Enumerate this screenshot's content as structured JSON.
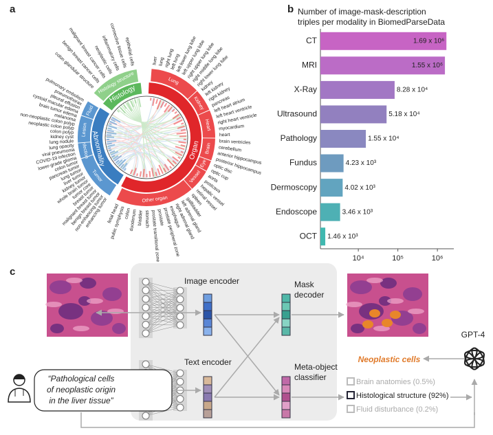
{
  "panel_labels": [
    "a",
    "b",
    "c"
  ],
  "panel_a": {
    "groups": [
      {
        "name": "Histology",
        "color": "#5cb85c",
        "band_color": "#8fd08a",
        "subgroups": [
          {
            "name": "Histology structure",
            "labels": [
              "colon glandular structure",
              "benign breast cancer cells",
              "malignant breast cancer cells",
              "neoplastic cells",
              "inflammatory cells",
              "connective tissue cells",
              "epithelial cells"
            ]
          }
        ]
      },
      {
        "name": "Organ",
        "color": "#e0262a",
        "band_color": "#ec4a4c",
        "subgroups": [
          {
            "name": "Lung",
            "labels": [
              "liver",
              "lung",
              "right lung",
              "left lung",
              "left lower lung lobe",
              "left upper lung lobe",
              "right upper lung lobe",
              "right middle lung lobe",
              "right lower lung lobe"
            ]
          },
          {
            "name": "Kidney",
            "labels": [
              "kidney",
              "left kidney",
              "right kidney",
              "pancreas"
            ]
          },
          {
            "name": "Heart",
            "labels": [
              "left heart atrium",
              "left heart ventricle",
              "right heart ventricle",
              "myocardium",
              "heart"
            ]
          },
          {
            "name": "Brain",
            "labels": [
              "brain ventricles",
              "cerebellum",
              "anterior hippocampus",
              "posterior hippocampus"
            ]
          },
          {
            "name": "Eye",
            "labels": [
              "optic disc",
              "optic cup"
            ]
          },
          {
            "name": "Vessel",
            "labels": [
              "aorta",
              "postcava",
              "hepatic vessel",
              "retinal vessel"
            ]
          },
          {
            "name": "Other organ",
            "labels": [
              "spleen",
              "gallbladder",
              "left adrenal gland",
              "right adrenal gland",
              "esophagus",
              "prostate peripheral zone",
              "prostate",
              "prostate transitional zone",
              "stomach",
              "bladder",
              "duodenum",
              "colon",
              "pubic symphysis",
              "fetal head"
            ]
          }
        ]
      },
      {
        "name": "Abnormality",
        "color": "#3a7dc0",
        "band_color": "#5b97d0",
        "subgroups": [
          {
            "name": "Tumor",
            "labels": [
              "enhancing tumor",
              "non-enhancing tumor",
              "benign breast tumor",
              "malignant breast tumor",
              "breast tumor",
              "tumor core",
              "whole brain tumor",
              "kidney tumor",
              "liver tumor",
              "lung tumor",
              "pancreas tumor",
              "colon tumor"
            ]
          },
          {
            "name": "Infection",
            "labels": [
              "lower-grade glioma",
              "COVID-19 infection",
              "viral pneumonia",
              "lung opacity"
            ]
          },
          {
            "name": "Lesion",
            "labels": [
              "lung nodule",
              "kidney cyst",
              "colon polyp",
              "neoplastic colon polyp",
              "non-neoplastic colon polyp",
              "melanoma",
              "brain tumor edema"
            ]
          },
          {
            "name": "Fluid",
            "labels": [
              "cystoid macular edema",
              "pleural effusion",
              "pneumothorax",
              "pulmonary embolism"
            ]
          }
        ]
      }
    ]
  },
  "chart_data": {
    "type": "bar",
    "orientation": "horizontal",
    "title": [
      "Number of image-mask-description",
      "triples per modality in BiomedParseData"
    ],
    "categories": [
      "CT",
      "MRI",
      "X-Ray",
      "Ultrasound",
      "Pathology",
      "Fundus",
      "Dermoscopy",
      "Endoscope",
      "OCT"
    ],
    "values": [
      1690000,
      1550000,
      82800,
      51800,
      15500,
      4230,
      4020,
      3460,
      1460
    ],
    "value_labels": [
      "1.69 x 10⁶",
      "1.55 x 10⁶",
      "8.28 x 10⁴",
      "5.18 x 10⁴",
      "1.55 x 10⁴",
      "4.23 x 10³",
      "4.02 x 10³",
      "3.46 x 10³",
      "1.46 x 10³"
    ],
    "colors": [
      "#c764c4",
      "#bb6cc6",
      "#a277c4",
      "#9280bf",
      "#8a88c0",
      "#6e9bbf",
      "#62a4bf",
      "#4eb0b4",
      "#40b8b0"
    ],
    "xlim": [
      1100,
      2600000
    ],
    "xticks": [
      {
        "value": 10000,
        "label": "10⁴"
      },
      {
        "value": 100000,
        "label": "10⁵"
      },
      {
        "value": 1000000,
        "label": "10⁶"
      }
    ],
    "log_scale": true
  },
  "panel_c": {
    "image_encoder": "Image encoder",
    "text_encoder": "Text encoder",
    "mask_decoder": [
      "Mask",
      "decoder"
    ],
    "classifier": [
      "Meta-object",
      "classifier"
    ],
    "gpt": "GPT-4",
    "output": "Neoplastic cells",
    "prompt": [
      "“Pathological cells",
      "of neoplastic origin",
      "in the liver tissue”"
    ],
    "options": [
      "Brain anatomies (0.5%)",
      "Histological structure (92%)",
      "Fluid disturbance (0.2%)"
    ]
  }
}
